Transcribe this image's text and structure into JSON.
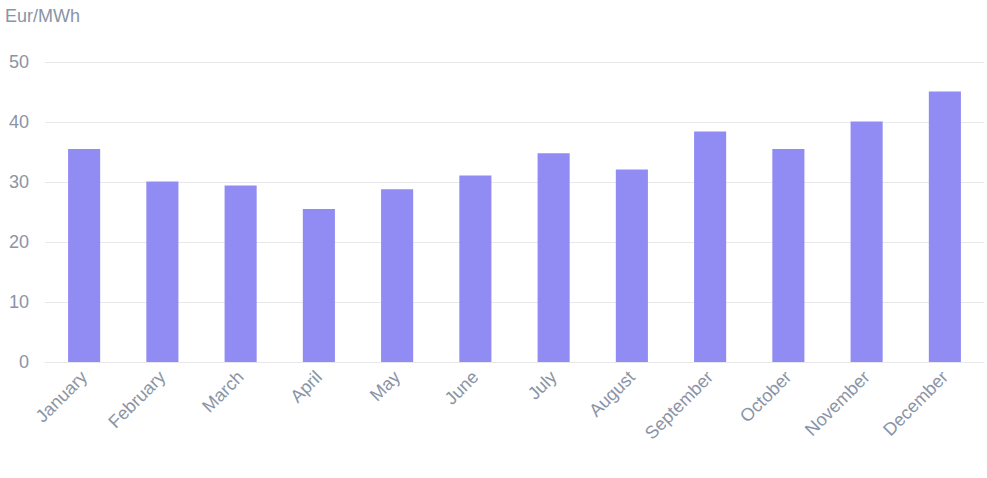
{
  "chart_data": {
    "type": "bar",
    "y_label": "Eur/MWh",
    "categories": [
      "January",
      "February",
      "March",
      "April",
      "May",
      "June",
      "July",
      "August",
      "September",
      "October",
      "November",
      "December"
    ],
    "values": [
      35.5,
      30.1,
      29.4,
      25.5,
      28.8,
      31.1,
      34.8,
      32.1,
      38.4,
      35.5,
      40.1,
      45.1
    ],
    "color": "#918bf4",
    "ylim": [
      0,
      50
    ],
    "yticks": [
      0,
      10,
      20,
      30,
      40,
      50
    ],
    "grid": true
  }
}
